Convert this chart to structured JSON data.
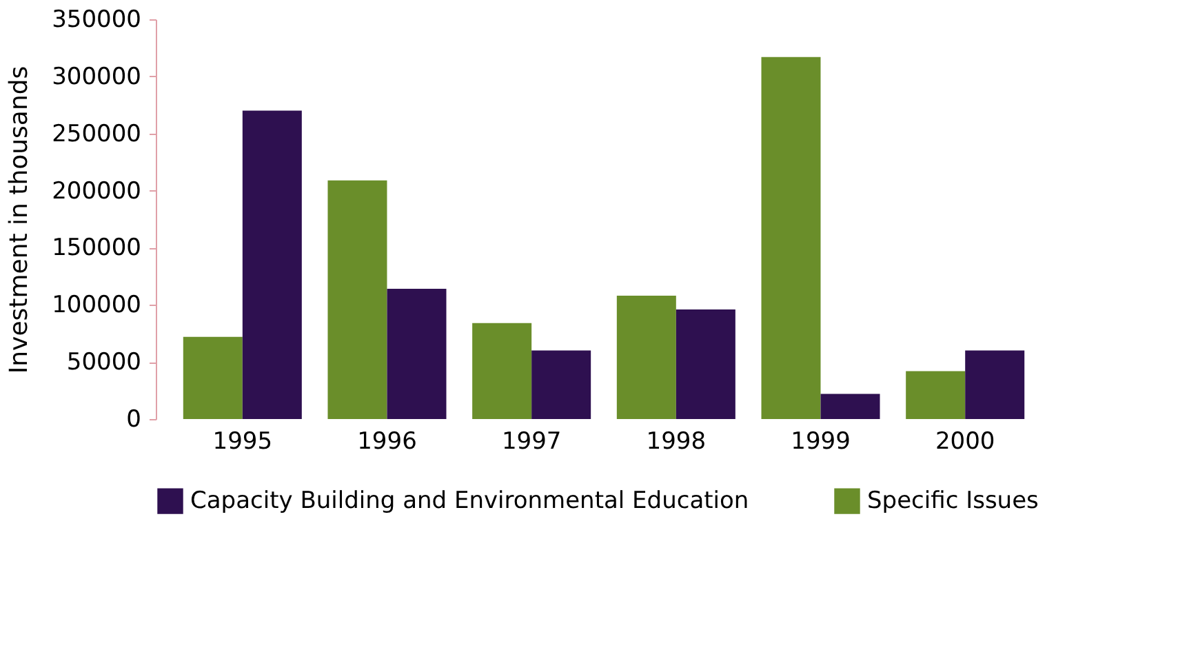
{
  "chart_data": {
    "type": "bar",
    "ylabel": "Investment in thousands",
    "categories": [
      "1995",
      "1996",
      "1997",
      "1998",
      "1999",
      "2000"
    ],
    "series": [
      {
        "name": "Specific Issues",
        "color": "#6a8e2a",
        "values": [
          72000,
          209000,
          84000,
          108000,
          317000,
          42000
        ]
      },
      {
        "name": "Capacity Building and Environmental Education",
        "color": "#2e1050",
        "values": [
          270000,
          114000,
          60000,
          96000,
          22000,
          60000
        ]
      }
    ],
    "ylim": [
      0,
      350000
    ],
    "yticks": [
      0,
      50000,
      100000,
      150000,
      200000,
      250000,
      300000,
      350000
    ],
    "grid": false,
    "legend": "bottom"
  }
}
